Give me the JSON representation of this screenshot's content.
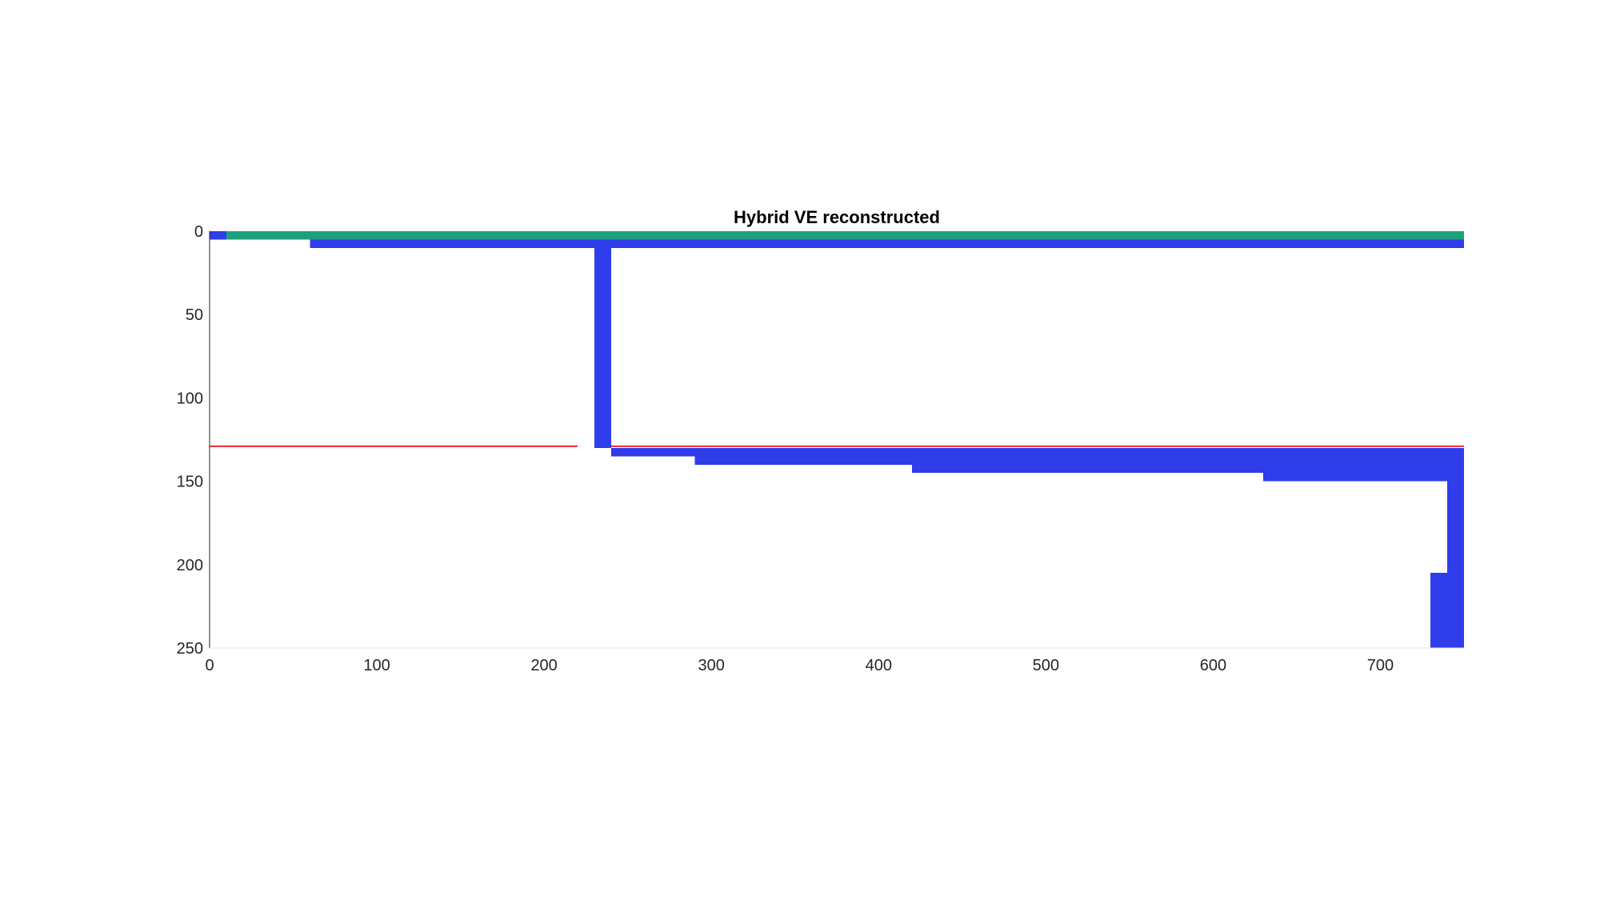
{
  "chart_data": {
    "type": "heatmap",
    "title": "Hybrid VE reconstructed",
    "xlabel": "",
    "ylabel": "",
    "xlim": [
      0,
      750
    ],
    "ylim": [
      0,
      250
    ],
    "y_reversed": true,
    "grid": false,
    "x_ticks": [
      0,
      100,
      200,
      300,
      400,
      500,
      600,
      700
    ],
    "y_ticks": [
      0,
      50,
      100,
      150,
      200,
      250
    ],
    "colors": {
      "blue": "#2f3deb",
      "green": "#1fa07c",
      "red": "#e8000b",
      "axis": "#262626"
    },
    "cells": [
      {
        "x": [
          0,
          10
        ],
        "y": [
          0,
          5
        ],
        "color": "blue"
      },
      {
        "x": [
          10,
          750
        ],
        "y": [
          0,
          5
        ],
        "color": "green"
      },
      {
        "x": [
          60,
          750
        ],
        "y": [
          5,
          10
        ],
        "color": "blue"
      },
      {
        "x": [
          230,
          240
        ],
        "y": [
          10,
          130
        ],
        "color": "blue"
      },
      {
        "x": [
          240,
          750
        ],
        "y": [
          130,
          135
        ],
        "color": "blue"
      },
      {
        "x": [
          290,
          750
        ],
        "y": [
          135,
          140
        ],
        "color": "blue"
      },
      {
        "x": [
          420,
          750
        ],
        "y": [
          140,
          145
        ],
        "color": "blue"
      },
      {
        "x": [
          630,
          750
        ],
        "y": [
          145,
          150
        ],
        "color": "blue"
      },
      {
        "x": [
          740,
          750
        ],
        "y": [
          150,
          250
        ],
        "color": "blue"
      },
      {
        "x": [
          730,
          740
        ],
        "y": [
          205,
          250
        ],
        "color": "blue"
      }
    ],
    "reference_line": {
      "y": 129,
      "segments": [
        [
          0,
          220
        ],
        [
          240,
          750
        ]
      ],
      "color": "red"
    }
  }
}
